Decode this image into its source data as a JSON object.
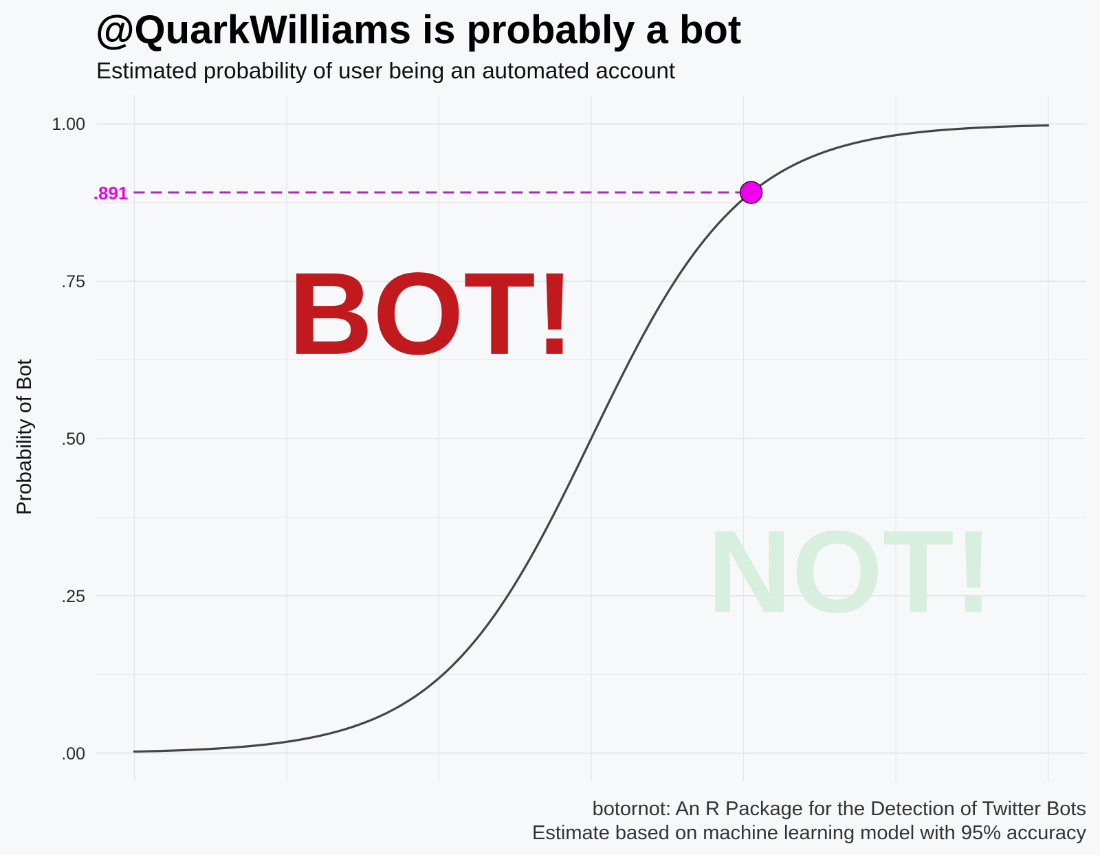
{
  "chart_data": {
    "type": "line",
    "title": "@QuarkWilliams is probably a bot",
    "subtitle": "Estimated probability of user being an automated account",
    "ylabel": "Probability of Bot",
    "xlabel": "",
    "ylim": [
      -0.045,
      1.045
    ],
    "xlim": [
      -6.5,
      6.5
    ],
    "yticks": [
      0,
      0.25,
      0.5,
      0.75,
      1.0
    ],
    "ytick_labels": [
      ".00",
      ".25",
      ".50",
      ".75",
      "1.00"
    ],
    "xgrid": [
      -6,
      -4,
      -2,
      0,
      2,
      4,
      6
    ],
    "grid": true,
    "series": [
      {
        "curve": "logistic",
        "x": [
          -6,
          -5,
          -4,
          -3,
          -2,
          -1,
          0,
          1,
          2,
          3,
          4,
          5,
          6
        ],
        "values": [
          0.002,
          0.007,
          0.018,
          0.047,
          0.119,
          0.269,
          0.5,
          0.731,
          0.881,
          0.953,
          0.982,
          0.993,
          0.998
        ],
        "color": "#444444"
      }
    ],
    "highlight": {
      "x": 2.1,
      "y": 0.891,
      "label": ".891",
      "color": "#ee00ee",
      "line_color": "#a030b0"
    },
    "annotations": [
      {
        "text": "BOT!",
        "x": -2.1,
        "y": 0.7,
        "color": "#c0191e"
      },
      {
        "text": "NOT!",
        "x": 3.4,
        "y": 0.29,
        "color": "#d8eedf"
      }
    ],
    "caption": [
      "botornot: An R Package for the Detection of Twitter Bots",
      "Estimate based on machine learning model with 95% accuracy"
    ]
  }
}
